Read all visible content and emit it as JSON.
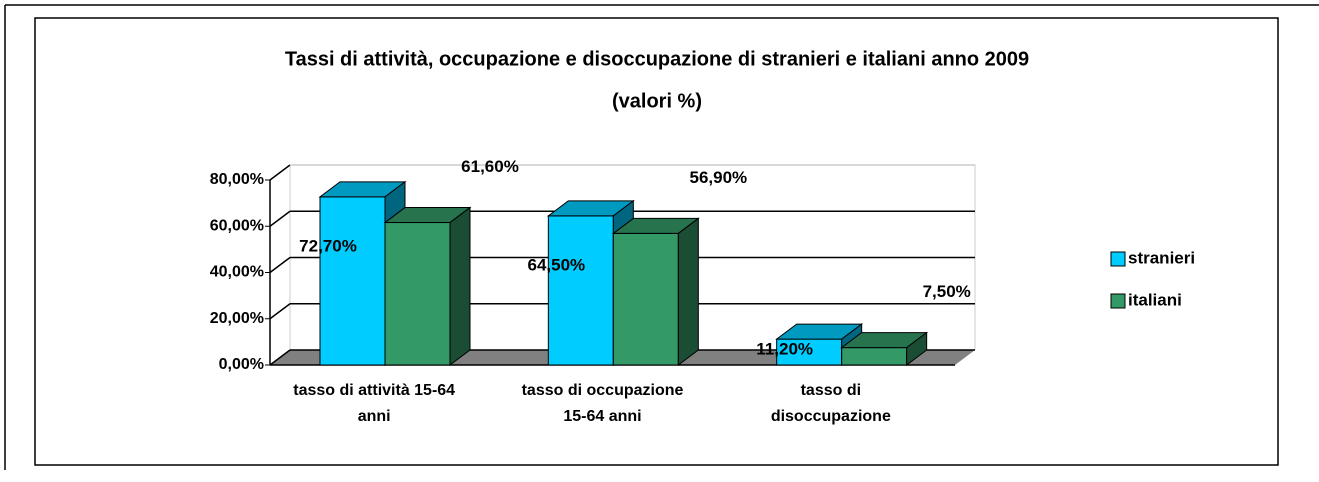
{
  "chart_data": {
    "type": "bar3d",
    "title": "Tassi di attività, occupazione e disoccupazione di stranieri e italiani anno 2009",
    "subtitle": "(valori %)",
    "categories": [
      "tasso di attività 15-64 anni",
      "tasso di occupazione 15-64 anni",
      "tasso di disoccupazione"
    ],
    "series": [
      {
        "name": "stranieri",
        "color": "#00ccff",
        "values": [
          72.7,
          64.5,
          11.2
        ],
        "value_labels": [
          "72,70%",
          "64,50%",
          "11,20%"
        ]
      },
      {
        "name": "italiani",
        "color": "#339966",
        "values": [
          61.6,
          56.9,
          7.5
        ],
        "value_labels": [
          "61,60%",
          "56,90%",
          "7,50%"
        ]
      }
    ],
    "ylim": [
      0,
      80
    ],
    "yticks": [
      {
        "value": 0,
        "label": "0,00%"
      },
      {
        "value": 20,
        "label": "20,00%"
      },
      {
        "value": 40,
        "label": "40,00%"
      },
      {
        "value": 60,
        "label": "60,00%"
      },
      {
        "value": 80,
        "label": "80,00%"
      }
    ],
    "grid": true,
    "legend": "right"
  }
}
